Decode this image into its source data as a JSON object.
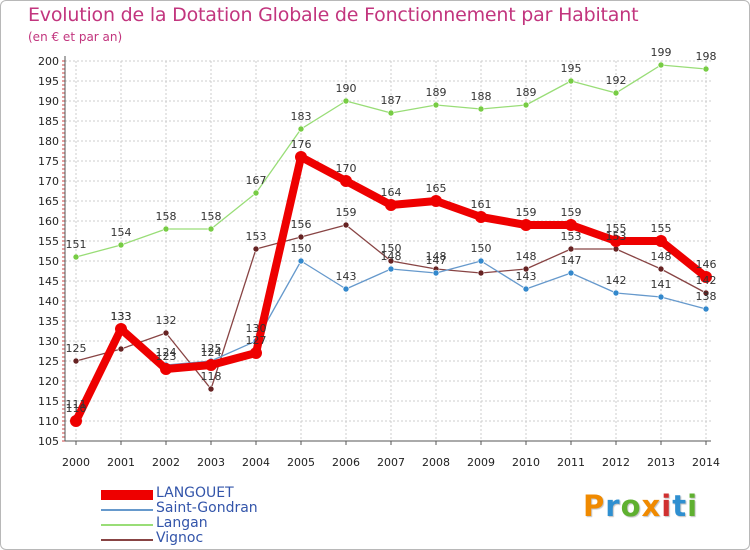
{
  "title": "Evolution de la Dotation Globale de Fonctionnement par Habitant",
  "subtitle": "(en € et par an)",
  "brand": {
    "text": "Proxiti",
    "letters": [
      "P",
      "r",
      "o",
      "x",
      "i",
      "t",
      "i"
    ],
    "colors": [
      "#f08a00",
      "#2f8fd0",
      "#5fb030",
      "#f08a00",
      "#d03030",
      "#2f8fd0",
      "#5fb030"
    ]
  },
  "chart_data": {
    "type": "line",
    "x": [
      2000,
      2001,
      2002,
      2003,
      2004,
      2005,
      2006,
      2007,
      2008,
      2009,
      2010,
      2011,
      2012,
      2013,
      2014
    ],
    "ylim": [
      105,
      200
    ],
    "ytick_step": 5,
    "yticks": [
      "105",
      "110",
      "115",
      "120",
      "125",
      "130",
      "135",
      "140",
      "145",
      "150",
      "155",
      "160",
      "165",
      "170",
      "175",
      "180",
      "185",
      "190",
      "195",
      "200"
    ],
    "xticks": [
      "2000",
      "2001",
      "2002",
      "2003",
      "2004",
      "2005",
      "2006",
      "2007",
      "2008",
      "2009",
      "2010",
      "2011",
      "2012",
      "2013",
      "2014"
    ],
    "grid": true,
    "legend_position": "bottom-left",
    "series": [
      {
        "name": "Langan",
        "color": "#99dd77",
        "marker": "#77cc44",
        "values": [
          151,
          154,
          158,
          158,
          167,
          183,
          190,
          187,
          189,
          188,
          189,
          195,
          192,
          199,
          198
        ],
        "labels": [
          "151",
          "154",
          "158",
          "158",
          "167",
          "183",
          "190",
          "187",
          "189",
          "188",
          "189",
          "195",
          "192",
          "199",
          "198"
        ]
      },
      {
        "name": "Vignoc",
        "color": "#884444",
        "marker": "#662222",
        "values": [
          125,
          128,
          132,
          118,
          153,
          156,
          159,
          150,
          148,
          147,
          148,
          153,
          153,
          148,
          142
        ],
        "labels": [
          "125",
          "",
          "132",
          "118",
          "153",
          "156",
          "159",
          "150",
          "148",
          "",
          "148",
          "153",
          "153",
          "148",
          "142"
        ]
      },
      {
        "name": "Saint-Gondran",
        "color": "#6699cc",
        "marker": "#3388cc",
        "values": [
          111,
          133,
          124,
          125,
          130,
          150,
          143,
          148,
          147,
          150,
          143,
          147,
          142,
          141,
          138
        ],
        "labels": [
          "111",
          "133",
          "124",
          "125",
          "130",
          "150",
          "143",
          "148",
          "147",
          "150",
          "143",
          "147",
          "142",
          "141",
          "138"
        ]
      },
      {
        "name": "LANGOUET",
        "color": "#ee0000",
        "marker": "#ee0000",
        "values": [
          110,
          133,
          123,
          124,
          127,
          176,
          170,
          164,
          165,
          161,
          159,
          159,
          155,
          155,
          146
        ],
        "labels": [
          "110",
          "133",
          "123",
          "124",
          "127",
          "176",
          "170",
          "164",
          "165",
          "161",
          "159",
          "159",
          "155",
          "155",
          "146"
        ]
      }
    ],
    "legend": [
      {
        "name": "LANGOUET",
        "color": "#ee0000",
        "text_color": "#3355aa",
        "thickness": 10
      },
      {
        "name": "Saint-Gondran",
        "color": "#6699cc",
        "text_color": "#3355aa",
        "thickness": 2
      },
      {
        "name": "Langan",
        "color": "#99dd77",
        "text_color": "#3355aa",
        "thickness": 2
      },
      {
        "name": "Vignoc",
        "color": "#884444",
        "text_color": "#3355aa",
        "thickness": 2
      }
    ]
  }
}
